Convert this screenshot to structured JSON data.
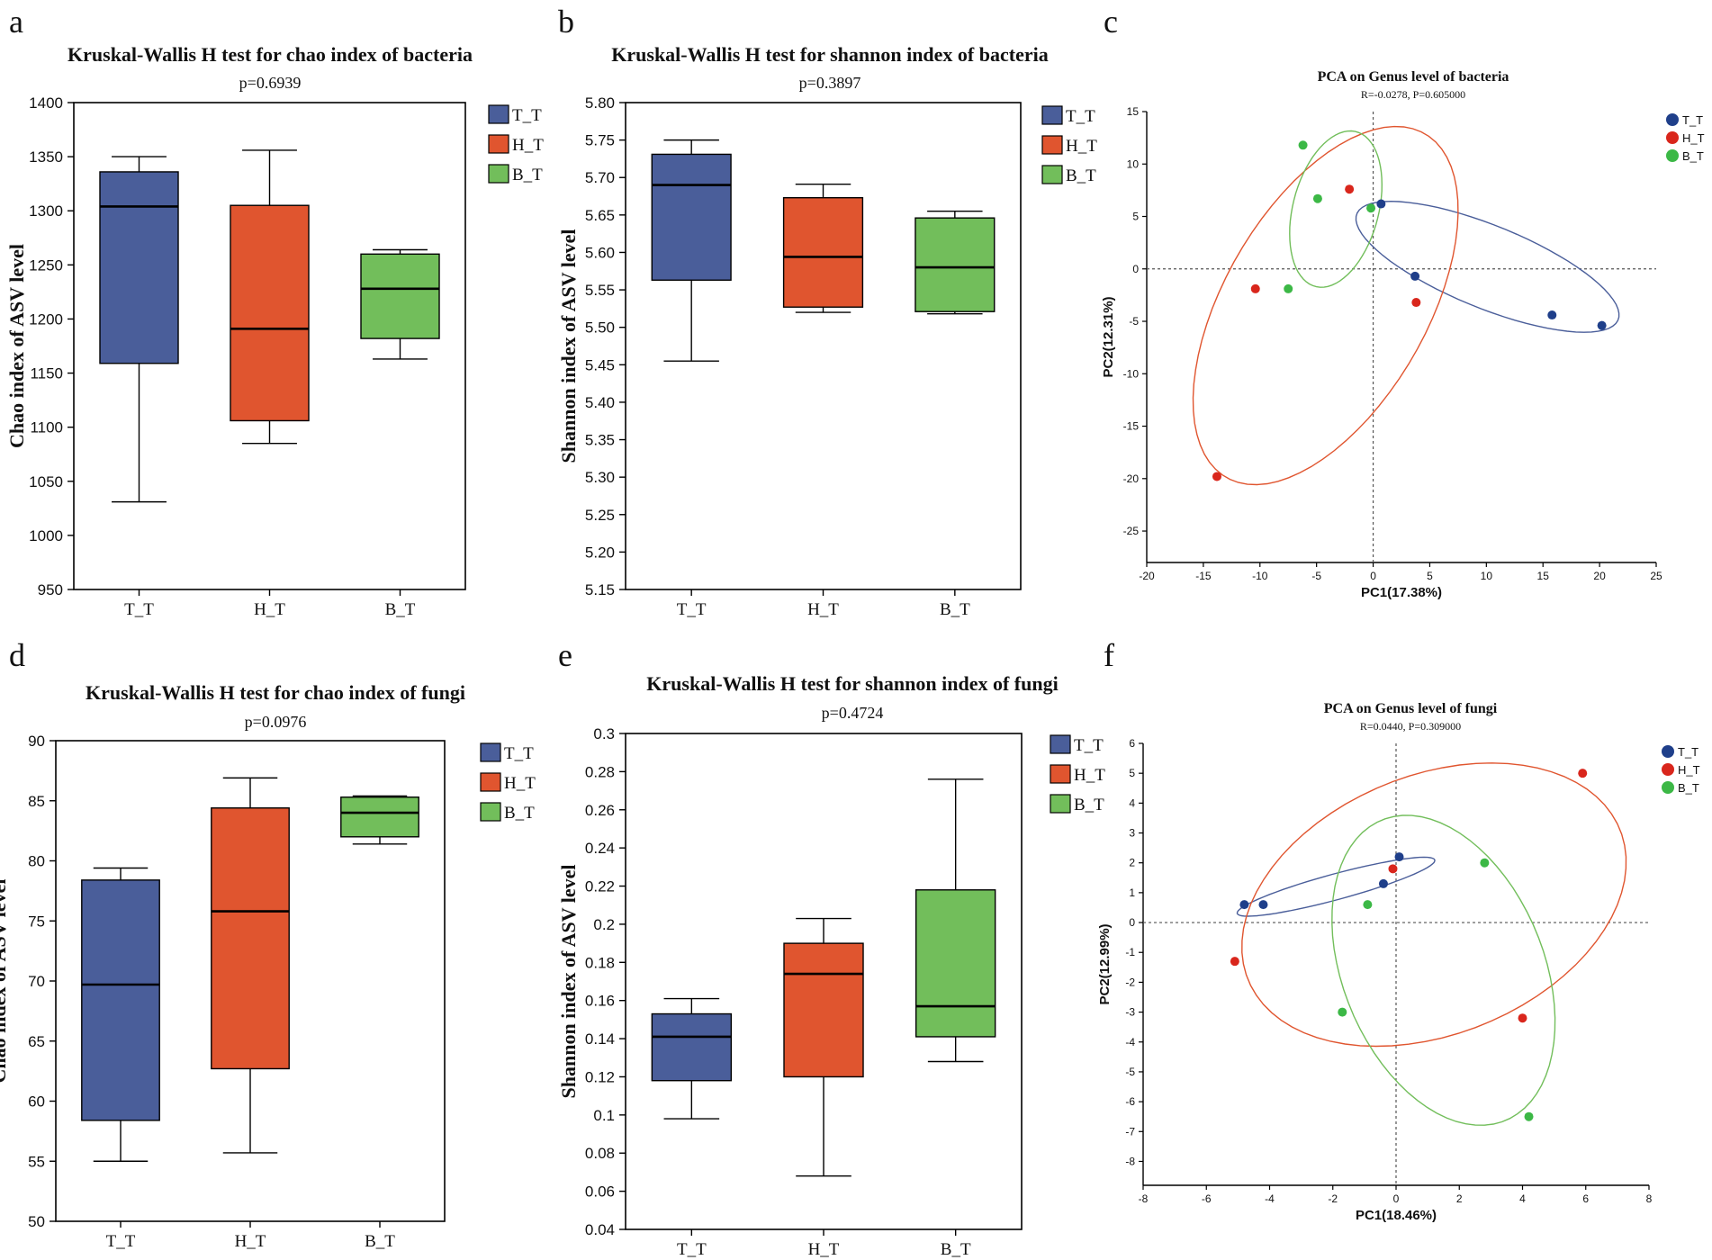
{
  "colors": {
    "T_T": "#4a5e9a",
    "H_T": "#e0552f",
    "B_T": "#72be5b",
    "T_T_dot": "#1f3f8a",
    "H_T_dot": "#d9261c",
    "B_T_dot": "#3cb846"
  },
  "chart_data": [
    {
      "id": "a",
      "letter": "a",
      "type": "box",
      "title": "Kruskal-Wallis H test for chao index of bacteria",
      "subtitle": "p=0.6939",
      "ylabel": "Chao index of ASV level",
      "xlabel": "",
      "ylim": [
        950,
        1400
      ],
      "yticks": [
        950,
        1000,
        1050,
        1100,
        1150,
        1200,
        1250,
        1300,
        1350,
        1400
      ],
      "ydec": 0,
      "categories": [
        "T_T",
        "H_T",
        "B_T"
      ],
      "legend": [
        "T_T",
        "H_T",
        "B_T"
      ],
      "boxes": [
        {
          "group": "T_T",
          "min": 1031,
          "q1": 1159,
          "median": 1304,
          "q3": 1336,
          "max": 1350
        },
        {
          "group": "H_T",
          "min": 1085,
          "q1": 1106,
          "median": 1191,
          "q3": 1305,
          "max": 1356
        },
        {
          "group": "B_T",
          "min": 1163,
          "q1": 1182,
          "median": 1228,
          "q3": 1260,
          "max": 1264
        }
      ]
    },
    {
      "id": "b",
      "letter": "b",
      "type": "box",
      "title": "Kruskal-Wallis H test for shannon index of bacteria",
      "subtitle": "p=0.3897",
      "ylabel": "Shannon index of ASV level",
      "xlabel": "",
      "ylim": [
        5.15,
        5.8
      ],
      "yticks": [
        5.15,
        5.2,
        5.25,
        5.3,
        5.35,
        5.4,
        5.45,
        5.5,
        5.55,
        5.6,
        5.65,
        5.7,
        5.75,
        5.8
      ],
      "ydec": 2,
      "categories": [
        "T_T",
        "H_T",
        "B_T"
      ],
      "legend": [
        "T_T",
        "H_T",
        "B_T"
      ],
      "boxes": [
        {
          "group": "T_T",
          "min": 5.455,
          "q1": 5.563,
          "median": 5.69,
          "q3": 5.731,
          "max": 5.75
        },
        {
          "group": "H_T",
          "min": 5.52,
          "q1": 5.527,
          "median": 5.594,
          "q3": 5.673,
          "max": 5.691
        },
        {
          "group": "B_T",
          "min": 5.518,
          "q1": 5.521,
          "median": 5.58,
          "q3": 5.646,
          "max": 5.655
        }
      ]
    },
    {
      "id": "c",
      "letter": "c",
      "type": "scatter",
      "title": "PCA on Genus level of bacteria",
      "subtitle": "R=-0.0278, P=0.605000",
      "xlabel": "PC1(17.38%)",
      "ylabel": "PC2(12.31%)",
      "xlim": [
        -20,
        25
      ],
      "ylim": [
        -28,
        15
      ],
      "xticks": [
        -20,
        -15,
        -10,
        -5,
        0,
        5,
        10,
        15,
        20,
        25
      ],
      "yticks": [
        -25,
        -20,
        -15,
        -10,
        -5,
        0,
        5,
        10,
        15
      ],
      "legend": [
        "T_T",
        "H_T",
        "B_T"
      ],
      "points": {
        "T_T": [
          [
            0.7,
            6.2
          ],
          [
            3.7,
            -0.7
          ],
          [
            15.8,
            -4.4
          ],
          [
            20.2,
            -5.4
          ]
        ],
        "H_T": [
          [
            -2.1,
            7.6
          ],
          [
            -10.4,
            -1.9
          ],
          [
            3.8,
            -3.2
          ],
          [
            -13.8,
            -19.8
          ]
        ],
        "B_T": [
          [
            -6.2,
            11.8
          ],
          [
            -4.9,
            6.7
          ],
          [
            -0.2,
            5.8
          ],
          [
            -7.5,
            -1.9
          ]
        ]
      },
      "ellipses": {
        "T_T": {
          "cx": 10.1,
          "cy": 0.2,
          "a": 12.6,
          "b": 3.9,
          "angle": -24
        },
        "H_T": {
          "cx": -4.2,
          "cy": -3.5,
          "a": 18.6,
          "b": 9.1,
          "angle": 63
        },
        "B_T": {
          "cx": -3.3,
          "cy": 5.7,
          "a": 7.6,
          "b": 3.8,
          "angle": 77
        }
      }
    },
    {
      "id": "d",
      "letter": "d",
      "type": "box",
      "title": "Kruskal-Wallis H test for chao index of fungi",
      "subtitle": "p=0.0976",
      "ylabel": "Chao index of ASV level",
      "xlabel": "",
      "ylim": [
        50,
        90
      ],
      "yticks": [
        50,
        55,
        60,
        65,
        70,
        75,
        80,
        85,
        90
      ],
      "ydec": 0,
      "categories": [
        "T_T",
        "H_T",
        "B_T"
      ],
      "legend": [
        "T_T",
        "H_T",
        "B_T"
      ],
      "boxes": [
        {
          "group": "T_T",
          "min": 55,
          "q1": 58.4,
          "median": 69.7,
          "q3": 78.4,
          "max": 79.4
        },
        {
          "group": "H_T",
          "min": 55.7,
          "q1": 62.7,
          "median": 75.8,
          "q3": 84.4,
          "max": 86.9
        },
        {
          "group": "B_T",
          "min": 81.4,
          "q1": 82,
          "median": 84,
          "q3": 85.3,
          "max": 85.4
        }
      ]
    },
    {
      "id": "e",
      "letter": "e",
      "type": "box",
      "title": "Kruskal-Wallis H test for shannon index of fungi",
      "subtitle": "p=0.4724",
      "ylabel": "Shannon index of ASV level",
      "xlabel": "",
      "ylim": [
        0.04,
        0.3
      ],
      "yticks": [
        0.04,
        0.06,
        0.08,
        0.1,
        0.12,
        0.14,
        0.16,
        0.18,
        0.2,
        0.22,
        0.24,
        0.26,
        0.28,
        0.3
      ],
      "ydec": -1,
      "categories": [
        "T_T",
        "H_T",
        "B_T"
      ],
      "legend": [
        "T_T",
        "H_T",
        "B_T"
      ],
      "boxes": [
        {
          "group": "T_T",
          "min": 0.098,
          "q1": 0.118,
          "median": 0.141,
          "q3": 0.153,
          "max": 0.161
        },
        {
          "group": "H_T",
          "min": 0.068,
          "q1": 0.12,
          "median": 0.174,
          "q3": 0.19,
          "max": 0.203
        },
        {
          "group": "B_T",
          "min": 0.128,
          "q1": 0.141,
          "median": 0.157,
          "q3": 0.218,
          "max": 0.276
        }
      ]
    },
    {
      "id": "f",
      "letter": "f",
      "type": "scatter",
      "title": "PCA on Genus level of fungi",
      "subtitle": "R=0.0440, P=0.309000",
      "xlabel": "PC1(18.46%)",
      "ylabel": "PC2(12.99%)",
      "xlim": [
        -8,
        8
      ],
      "ylim": [
        -8.8,
        6
      ],
      "xticks": [
        -8,
        -6,
        -4,
        -2,
        0,
        2,
        4,
        6,
        8
      ],
      "yticks": [
        -8,
        -7,
        -6,
        -5,
        -4,
        -3,
        -2,
        -1,
        0,
        1,
        2,
        3,
        4,
        5,
        6
      ],
      "legend": [
        "T_T",
        "H_T",
        "B_T"
      ],
      "points": {
        "T_T": [
          [
            0.1,
            2.2
          ],
          [
            -0.4,
            1.3
          ],
          [
            -4.2,
            0.6
          ],
          [
            -4.8,
            0.6
          ]
        ],
        "H_T": [
          [
            5.9,
            5
          ],
          [
            -0.1,
            1.8
          ],
          [
            -5.1,
            -1.3
          ],
          [
            4,
            -3.2
          ]
        ],
        "B_T": [
          [
            2.8,
            2
          ],
          [
            -0.9,
            0.6
          ],
          [
            -1.7,
            -3
          ],
          [
            4.2,
            -6.5
          ]
        ]
      },
      "ellipses": {
        "T_T": {
          "cx": -1.9,
          "cy": 1.2,
          "a": 3.25,
          "b": 0.43,
          "angle": 16
        },
        "H_T": {
          "cx": 1.2,
          "cy": 0.6,
          "a": 6.4,
          "b": 4.3,
          "angle": 25
        },
        "B_T": {
          "cx": 1.5,
          "cy": -1.6,
          "a": 5.4,
          "b": 3.2,
          "angle": -70
        }
      }
    }
  ],
  "layout_note": "figure panels a-f"
}
